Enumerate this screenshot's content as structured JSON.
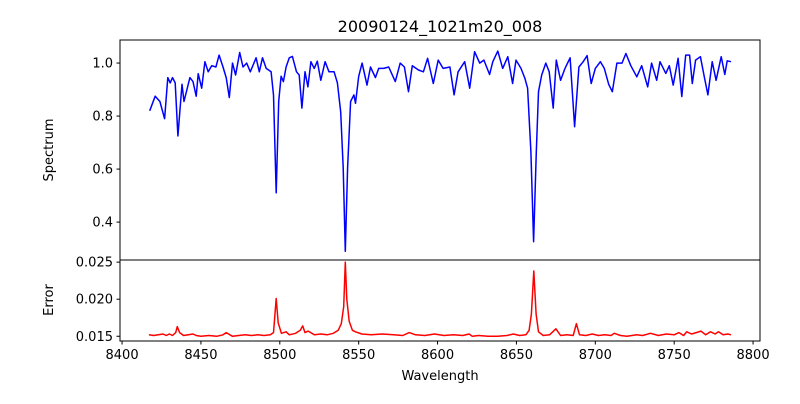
{
  "chart_data": [
    {
      "type": "line",
      "title": "20090124_1021m20_008",
      "xlabel": "",
      "ylabel": "Spectrum",
      "xlim": [
        8398.7,
        8804.4
      ],
      "ylim": [
        0.257,
        1.087
      ],
      "yticks": [
        "0.4",
        "0.6",
        "0.8",
        "1.0"
      ],
      "ytick_values": [
        0.4,
        0.6,
        0.8,
        1.0
      ],
      "grid": false,
      "series": [
        {
          "name": "Spectrum",
          "color": "#0000ff",
          "x": [
            8417.5,
            8421,
            8424,
            8427,
            8429,
            8430.5,
            8432,
            8433.7,
            8435.4,
            8438,
            8439.3,
            8443,
            8445,
            8447,
            8448.3,
            8450.5,
            8452.5,
            8454.6,
            8456.8,
            8459.5,
            8461.5,
            8464,
            8466,
            8468,
            8470,
            8472,
            8474.6,
            8476.7,
            8479,
            8481.3,
            8485,
            8487,
            8489,
            8491.4,
            8494.5,
            8496,
            8497.7,
            8499.3,
            8500.8,
            8502.3,
            8504,
            8506,
            8508,
            8510.6,
            8512.3,
            8514,
            8516,
            8517.8,
            8519.7,
            8521.8,
            8523.8,
            8526,
            8528.7,
            8531.2,
            8534.4,
            8536.5,
            8538.6,
            8540.2,
            8541.5,
            8543,
            8544.9,
            8547,
            8548,
            8550,
            8552.2,
            8555.3,
            8557.5,
            8560.6,
            8562.7,
            8565.8,
            8569,
            8573.2,
            8576.3,
            8579,
            8581.6,
            8584,
            8587.9,
            8591,
            8593.7,
            8597.3,
            8600.4,
            8603.5,
            8607.8,
            8610.5,
            8613,
            8617.2,
            8620.4,
            8623.5,
            8626.7,
            8629.4,
            8633,
            8635,
            8638.2,
            8641.3,
            8644.5,
            8647.6,
            8649.7,
            8652.9,
            8655.4,
            8657.1,
            8659.2,
            8660.9,
            8662.6,
            8664,
            8666,
            8668.6,
            8670.8,
            8673.3,
            8675.3,
            8678,
            8680.8,
            8684,
            8686.9,
            8689.6,
            8692.3,
            8694.8,
            8697.4,
            8700,
            8703.2,
            8705.7,
            8708.5,
            8710.8,
            8713.7,
            8716.9,
            8719.4,
            8722.5,
            8726.3,
            8729.4,
            8733.2,
            8735.7,
            8738.9,
            8741,
            8744.7,
            8746.9,
            8749.4,
            8752.5,
            8754.8,
            8757.3,
            8759.8,
            8761.5,
            8763.6,
            8766.6,
            8769.3,
            8771.4,
            8774.1,
            8776.6,
            8779.8,
            8782.1,
            8783.6,
            8786
          ],
          "y": [
            0.82,
            0.875,
            0.855,
            0.79,
            0.945,
            0.925,
            0.945,
            0.925,
            0.725,
            0.92,
            0.855,
            0.945,
            0.93,
            0.875,
            0.96,
            0.905,
            1.005,
            0.967,
            0.99,
            0.985,
            1.03,
            0.985,
            0.945,
            0.87,
            1.0,
            0.955,
            1.04,
            0.985,
            1.0,
            0.967,
            1.02,
            0.967,
            1.02,
            0.98,
            0.967,
            0.88,
            0.51,
            0.855,
            0.95,
            0.93,
            0.985,
            1.02,
            1.025,
            0.967,
            0.955,
            0.83,
            0.967,
            0.91,
            1.005,
            0.98,
            1.007,
            0.935,
            1.005,
            0.967,
            0.967,
            0.925,
            0.815,
            0.605,
            0.29,
            0.605,
            0.855,
            0.88,
            0.848,
            0.95,
            1.0,
            0.917,
            0.985,
            0.945,
            0.98,
            0.98,
            0.985,
            0.93,
            1.0,
            0.985,
            0.892,
            0.99,
            0.974,
            0.967,
            1.018,
            0.923,
            1.011,
            0.98,
            0.985,
            0.88,
            0.967,
            1.005,
            0.905,
            1.043,
            1.0,
            1.011,
            0.957,
            1.005,
            1.045,
            0.98,
            1.024,
            0.923,
            1.011,
            0.98,
            0.942,
            0.905,
            0.665,
            0.326,
            0.665,
            0.892,
            0.955,
            1.0,
            0.967,
            0.83,
            1.011,
            0.935,
            0.98,
            1.02,
            0.76,
            0.985,
            1.005,
            1.028,
            0.923,
            0.98,
            1.005,
            0.98,
            0.92,
            0.892,
            1.0,
            1.0,
            1.036,
            0.99,
            0.948,
            0.99,
            0.91,
            1.0,
            0.935,
            1.005,
            0.961,
            0.99,
            0.917,
            1.018,
            0.874,
            1.03,
            1.03,
            0.923,
            1.011,
            1.024,
            0.942,
            0.88,
            1.005,
            0.935,
            1.024,
            0.957,
            1.008,
            1.005
          ]
        }
      ]
    },
    {
      "type": "line",
      "title": "",
      "xlabel": "Wavelength",
      "ylabel": "Error",
      "xlim": [
        8398.7,
        8804.4
      ],
      "ylim": [
        0.01436,
        0.02529
      ],
      "xticks": [
        "8400",
        "8450",
        "8500",
        "8550",
        "8600",
        "8650",
        "8700",
        "8750",
        "8800"
      ],
      "xtick_values": [
        8400,
        8450,
        8500,
        8550,
        8600,
        8650,
        8700,
        8750,
        8800
      ],
      "yticks": [
        "0.015",
        "0.020",
        "0.025"
      ],
      "ytick_values": [
        0.015,
        0.02,
        0.025
      ],
      "grid": false,
      "series": [
        {
          "name": "Error",
          "color": "#ff0000",
          "x": [
            8417,
            8420,
            8423,
            8426,
            8428,
            8430,
            8432,
            8434,
            8435,
            8436.5,
            8439,
            8442,
            8445,
            8447,
            8450,
            8455,
            8460,
            8464,
            8466,
            8470,
            8474,
            8478,
            8482,
            8486,
            8490,
            8494,
            8496,
            8497.7,
            8499,
            8501,
            8504,
            8506,
            8510,
            8513,
            8514.5,
            8516,
            8518,
            8522,
            8526,
            8530,
            8534,
            8537,
            8539,
            8540.5,
            8541.5,
            8542.5,
            8544,
            8546,
            8548,
            8552,
            8558,
            8565,
            8572,
            8578,
            8582,
            8586,
            8592,
            8598,
            8604,
            8610,
            8616,
            8620,
            8622,
            8626,
            8632,
            8638,
            8644,
            8648,
            8652,
            8656,
            8658,
            8659.5,
            8661,
            8662.5,
            8664,
            8667,
            8671,
            8675,
            8678,
            8682,
            8686,
            8688,
            8690,
            8694,
            8698,
            8702,
            8706,
            8710,
            8712,
            8716,
            8720,
            8726,
            8730,
            8735,
            8740,
            8745,
            8750,
            8753,
            8756,
            8758,
            8761,
            8764,
            8767,
            8770,
            8773,
            8776,
            8778,
            8781,
            8784,
            8786
          ],
          "y": [
            0.0152,
            0.0151,
            0.0152,
            0.0153,
            0.0151,
            0.0153,
            0.0151,
            0.0155,
            0.0163,
            0.0155,
            0.0151,
            0.0152,
            0.0153,
            0.0151,
            0.015,
            0.0151,
            0.015,
            0.0152,
            0.0155,
            0.015,
            0.0151,
            0.0152,
            0.0151,
            0.0152,
            0.0151,
            0.0152,
            0.0155,
            0.0201,
            0.0168,
            0.0154,
            0.0156,
            0.0152,
            0.0154,
            0.0158,
            0.0164,
            0.0155,
            0.0157,
            0.0152,
            0.0153,
            0.0152,
            0.0154,
            0.0158,
            0.0167,
            0.019,
            0.025,
            0.02,
            0.017,
            0.0158,
            0.0156,
            0.0153,
            0.0152,
            0.0153,
            0.0152,
            0.0151,
            0.0155,
            0.0152,
            0.0151,
            0.0153,
            0.0151,
            0.0152,
            0.0151,
            0.0153,
            0.015,
            0.0151,
            0.015,
            0.015,
            0.0151,
            0.0153,
            0.0151,
            0.0152,
            0.0158,
            0.018,
            0.0238,
            0.018,
            0.0156,
            0.0151,
            0.0152,
            0.016,
            0.0151,
            0.0152,
            0.0151,
            0.0167,
            0.0152,
            0.0151,
            0.0153,
            0.0151,
            0.0152,
            0.0151,
            0.0154,
            0.0151,
            0.015,
            0.0152,
            0.0151,
            0.0154,
            0.0151,
            0.0153,
            0.0152,
            0.0155,
            0.0151,
            0.0156,
            0.0153,
            0.0155,
            0.0157,
            0.0152,
            0.0156,
            0.0153,
            0.0156,
            0.0152,
            0.0153,
            0.0152
          ]
        }
      ]
    }
  ]
}
